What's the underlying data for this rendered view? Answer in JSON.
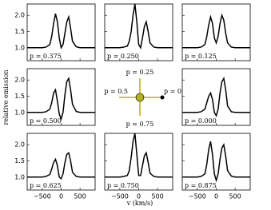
{
  "chart_data": {
    "type": "line",
    "xlabel": "v (km/s)",
    "ylabel": "relative emission",
    "x": [
      -900,
      -700,
      -500,
      -400,
      -300,
      -250,
      -200,
      -150,
      -100,
      -50,
      0,
      50,
      100,
      150,
      200,
      250,
      300,
      400,
      500,
      700,
      900
    ],
    "xlim": [
      -900,
      900
    ],
    "ylim": [
      0.6,
      2.35
    ],
    "xticks": [
      {
        "value": -500,
        "label": "−500"
      },
      0,
      500
    ],
    "yticks": [
      {
        "value": 1,
        "label": "1.0"
      },
      1.5,
      {
        "value": 2,
        "label": "2.0"
      }
    ],
    "color": "#000000",
    "series": [
      {
        "name": "p = 0.375",
        "values": [
          1.0,
          1.0,
          1.0,
          1.02,
          1.1,
          1.35,
          1.75,
          2.05,
          1.8,
          1.3,
          1.0,
          1.1,
          1.45,
          1.8,
          1.95,
          1.6,
          1.2,
          1.03,
          1.0,
          1.0,
          1.0
        ]
      },
      {
        "name": "p = 0.250",
        "values": [
          1.0,
          1.0,
          1.0,
          1.02,
          1.05,
          1.2,
          1.5,
          2.0,
          2.35,
          1.8,
          1.1,
          1.0,
          1.3,
          1.65,
          1.8,
          1.5,
          1.15,
          1.02,
          1.0,
          1.0,
          1.0
        ]
      },
      {
        "name": "p = 0.125",
        "values": [
          1.0,
          1.0,
          1.0,
          1.02,
          1.1,
          1.35,
          1.7,
          1.95,
          1.75,
          1.3,
          1.15,
          1.35,
          1.75,
          2.0,
          1.85,
          1.45,
          1.15,
          1.02,
          1.0,
          1.0,
          1.0
        ]
      },
      {
        "name": "p = 0.500",
        "values": [
          1.0,
          1.0,
          1.0,
          1.02,
          1.1,
          1.3,
          1.6,
          1.7,
          1.35,
          0.95,
          0.8,
          1.0,
          1.55,
          1.95,
          2.05,
          1.7,
          1.25,
          1.03,
          1.0,
          1.0,
          1.0
        ]
      },
      {
        "name": "p = 0.000",
        "values": [
          1.0,
          1.0,
          1.0,
          1.02,
          1.1,
          1.3,
          1.5,
          1.6,
          1.4,
          1.0,
          0.9,
          1.1,
          1.6,
          1.95,
          2.05,
          1.7,
          1.2,
          1.02,
          1.0,
          1.0,
          1.0
        ]
      },
      {
        "name": "p = 0.625",
        "values": [
          1.0,
          1.0,
          1.0,
          1.02,
          1.08,
          1.25,
          1.45,
          1.55,
          1.35,
          1.0,
          0.95,
          1.1,
          1.45,
          1.7,
          1.75,
          1.5,
          1.15,
          1.02,
          1.0,
          1.0,
          1.0
        ]
      },
      {
        "name": "p = 0.750",
        "values": [
          1.0,
          1.0,
          1.0,
          1.02,
          1.05,
          1.2,
          1.6,
          2.1,
          2.35,
          1.7,
          1.05,
          1.05,
          1.35,
          1.65,
          1.75,
          1.45,
          1.12,
          1.02,
          1.0,
          1.0,
          1.0
        ]
      },
      {
        "name": "p = 0.875",
        "values": [
          1.0,
          1.0,
          1.0,
          1.02,
          1.1,
          1.4,
          1.85,
          2.1,
          1.7,
          1.1,
          0.9,
          1.1,
          1.55,
          1.9,
          2.0,
          1.65,
          1.2,
          1.03,
          1.0,
          1.0,
          1.0
        ]
      }
    ],
    "orbit_labels": [
      "p = 0.25",
      "p = 0.5",
      "p = 0",
      "p = 0.75"
    ]
  }
}
